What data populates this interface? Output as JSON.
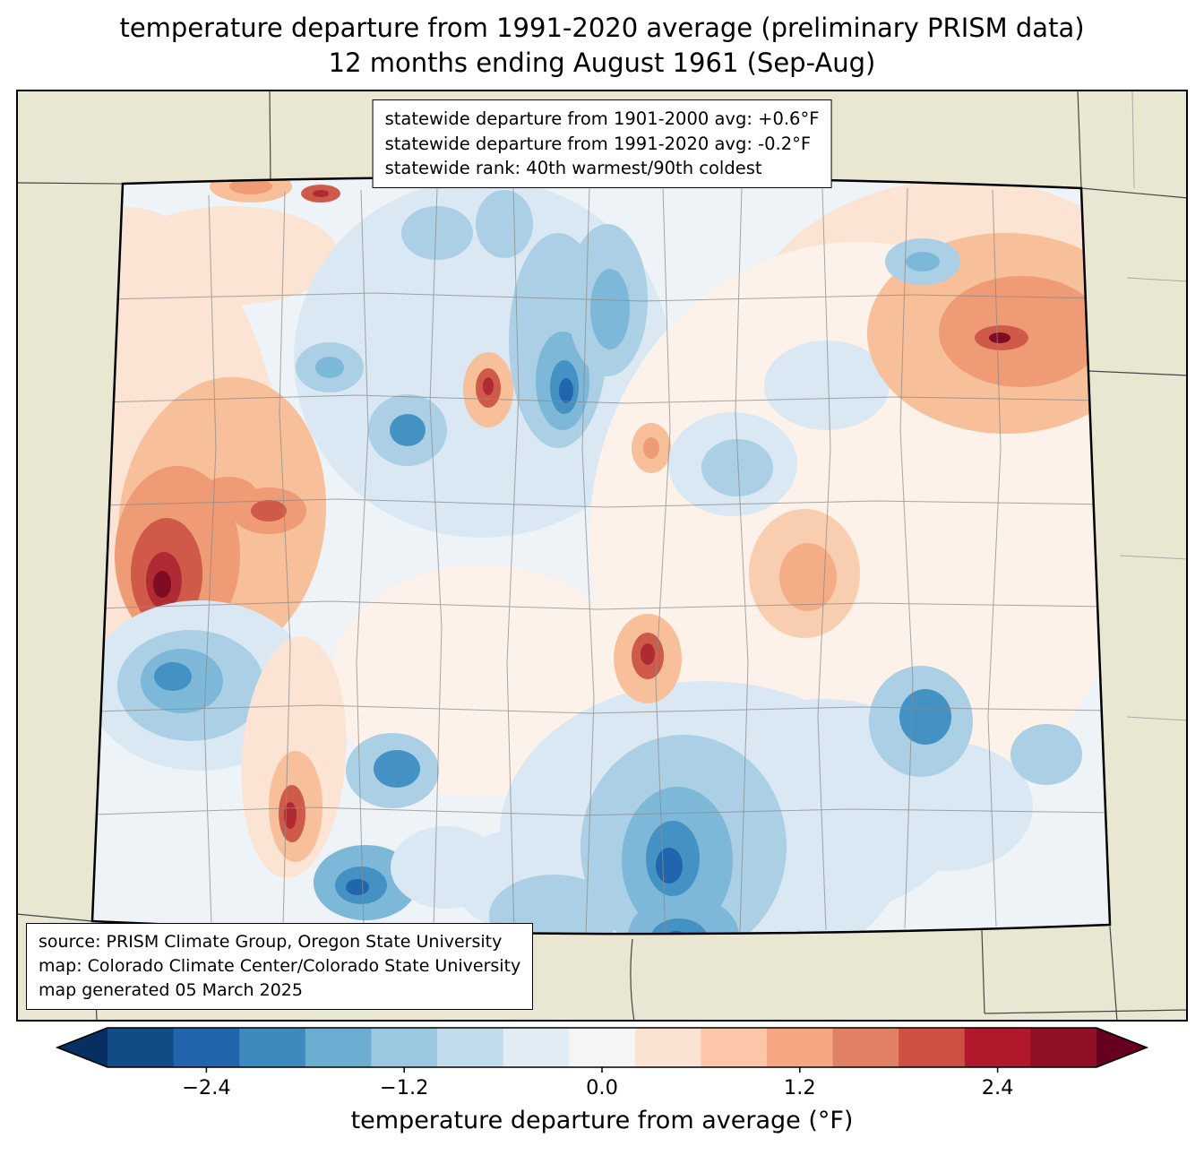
{
  "title": {
    "line1": "temperature departure from 1991-2020 average (preliminary PRISM data)",
    "line2": "12 months ending August 1961 (Sep-Aug)"
  },
  "stats_box": {
    "lines": [
      "statewide departure from 1901-2000 avg: +0.6°F",
      "statewide departure from 1991-2020 avg: -0.2°F",
      "statewide rank: 40th warmest/90th coldest"
    ]
  },
  "source_box": {
    "lines": [
      "source: PRISM Climate Group, Oregon State University",
      "map: Colorado Climate Center/Colorado State University",
      "map generated 05 March 2025"
    ]
  },
  "map": {
    "region": "Colorado",
    "background_color": "#e9e6d2",
    "state_border_color": "#000000",
    "neighbor_line_color": "#444444",
    "county_line_color": "#8a8a8a",
    "field_base_color": "#eef3f7"
  },
  "colorbar": {
    "label": "temperature departure from average (°F)",
    "range": [
      -3,
      3
    ],
    "arrow_left_color": "#053061",
    "arrow_right_color": "#67001f",
    "segment_colors": [
      "#134b87",
      "#2166ac",
      "#3c8abe",
      "#6bacd1",
      "#9ac8e0",
      "#c1dcec",
      "#e1ecf4",
      "#f7f5f3",
      "#fbe3d4",
      "#fcc7a9",
      "#f5a683",
      "#e08165",
      "#ce4f44",
      "#b2182b",
      "#8e0f26"
    ],
    "ticks": [
      {
        "value": -2.4,
        "label": "−2.4"
      },
      {
        "value": -1.2,
        "label": "−1.2"
      },
      {
        "value": 0.0,
        "label": "0.0"
      },
      {
        "value": 1.2,
        "label": "1.2"
      },
      {
        "value": 2.4,
        "label": "2.4"
      }
    ]
  }
}
